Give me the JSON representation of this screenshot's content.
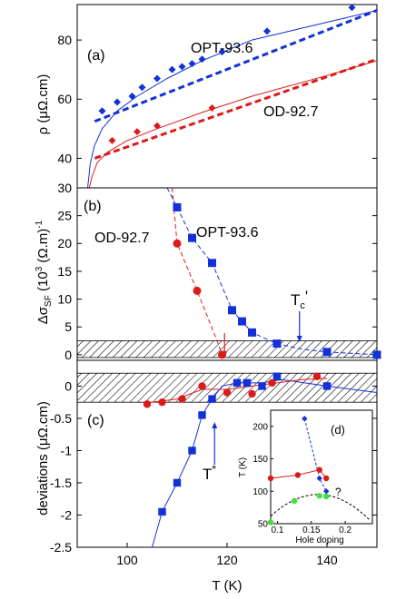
{
  "colors": {
    "blue": "#1430d8",
    "red": "#dd1a1a",
    "green": "#40e040",
    "axis": "#000000",
    "gray": "#777777"
  },
  "chart_data": [
    {
      "id": "a",
      "type": "line",
      "panel_label": "(a)",
      "ylabel": "ρ (μΩ.cm)",
      "xlim": [
        90,
        150
      ],
      "ylim": [
        30,
        92
      ],
      "yticks": [
        30,
        40,
        60,
        80
      ],
      "series": [
        {
          "name": "OPT-93.6",
          "color": "blue",
          "marker": "diamond",
          "points": [
            [
              95,
              56
            ],
            [
              98,
              59
            ],
            [
              101,
              61
            ],
            [
              103,
              64
            ],
            [
              106,
              67
            ],
            [
              109,
              70
            ],
            [
              111,
              71
            ],
            [
              113,
              72
            ],
            [
              115,
              73.5
            ],
            [
              119,
              76
            ],
            [
              128,
              83
            ],
            [
              145,
              91
            ]
          ]
        },
        {
          "name": "OD-92.7",
          "color": "red",
          "marker": "diamond",
          "points": [
            [
              97,
              46
            ],
            [
              102,
              49
            ],
            [
              106,
              51
            ],
            [
              117,
              57
            ]
          ]
        }
      ],
      "fits": [
        {
          "series": "OPT-93.6",
          "style": "dashed",
          "points": [
            [
              93.5,
              52.5
            ],
            [
              150,
              90
            ]
          ]
        },
        {
          "series": "OD-92.7",
          "style": "dashed",
          "points": [
            [
              93.5,
              40
            ],
            [
              150,
              73.5
            ]
          ]
        },
        {
          "series": "OPT-93.6",
          "style": "solid",
          "points": [
            [
              92.1,
              30
            ],
            [
              92.6,
              38
            ],
            [
              93.4,
              44
            ],
            [
              95,
              50
            ],
            [
              98,
              56
            ],
            [
              102,
              61
            ],
            [
              108,
              67
            ],
            [
              115,
              73
            ],
            [
              125,
              80
            ],
            [
              140,
              86
            ],
            [
              150,
              90
            ]
          ]
        },
        {
          "series": "OD-92.7",
          "style": "solid",
          "points": [
            [
              92.4,
              30
            ],
            [
              93,
              34
            ],
            [
              94,
              38.5
            ],
            [
              96,
              42
            ],
            [
              100,
              46
            ],
            [
              106,
              50
            ],
            [
              115,
              55.5
            ],
            [
              125,
              61
            ],
            [
              140,
              68
            ],
            [
              150,
              73
            ]
          ]
        }
      ]
    },
    {
      "id": "b",
      "type": "scatter",
      "panel_label": "(b)",
      "ylabel_main": "Δσ",
      "ylabel_sub": "SF",
      "ylabel_rest": " (10",
      "ylabel_exp": "3",
      "ylabel_tail": " (Ω.m)",
      "ylabel_exp2": "-1",
      "xlim": [
        90,
        150
      ],
      "ylim": [
        -1,
        30
      ],
      "yticks": [
        0,
        5,
        10,
        15,
        20,
        25
      ],
      "band": [
        -0.5,
        2.5
      ],
      "series": [
        {
          "name": "OPT-93.6",
          "color": "blue",
          "marker": "square",
          "points": [
            [
              110,
              26.5
            ],
            [
              113,
              21
            ],
            [
              117,
              16.5
            ],
            [
              121,
              8
            ],
            [
              123,
              6
            ],
            [
              125,
              4
            ],
            [
              130,
              2
            ],
            [
              140,
              0.5
            ],
            [
              150,
              0
            ]
          ]
        },
        {
          "name": "OD-92.7",
          "color": "red",
          "marker": "circle",
          "points": [
            [
              110,
              20
            ],
            [
              114,
              11.5
            ],
            [
              119,
              0
            ]
          ]
        }
      ],
      "fits": [
        {
          "series": "OPT-93.6",
          "style": "dashed",
          "points": [
            [
              108,
              30
            ],
            [
              110,
              26.5
            ],
            [
              113,
              21
            ],
            [
              117,
              16.5
            ],
            [
              121,
              8
            ],
            [
              125,
              4
            ],
            [
              130,
              2
            ],
            [
              135,
              1
            ],
            [
              140,
              0.5
            ],
            [
              150,
              0
            ]
          ]
        },
        {
          "series": "OD-92.7",
          "style": "dashed",
          "points": [
            [
              109,
              30
            ],
            [
              110,
              20
            ],
            [
              114,
              11.5
            ],
            [
              116,
              7
            ],
            [
              118,
              2.5
            ],
            [
              119,
              0
            ]
          ]
        }
      ],
      "annotations": {
        "tc_label": "T",
        "tc_sub": "c",
        "tc_prime": "'"
      }
    },
    {
      "id": "c",
      "type": "scatter",
      "panel_label": "(c)",
      "ylabel": "deviations (μΩ.cm)",
      "xlabel": "T (K)",
      "xlim": [
        90,
        150
      ],
      "xticks": [
        100,
        120,
        140
      ],
      "ylim": [
        -2.5,
        0.4
      ],
      "yticks": [
        0,
        -0.5,
        -1,
        -1.5,
        -2,
        -2.5
      ],
      "band": [
        -0.25,
        0.2
      ],
      "series": [
        {
          "name": "OPT-93.6",
          "color": "blue",
          "marker": "square",
          "points": [
            [
              107,
              -1.95
            ],
            [
              110,
              -1.5
            ],
            [
              113,
              -1.0
            ],
            [
              115,
              -0.45
            ],
            [
              117,
              -0.2
            ],
            [
              122,
              0.05
            ],
            [
              124,
              0.05
            ],
            [
              127,
              0.0
            ],
            [
              130,
              0.15
            ],
            [
              140,
              0.0
            ]
          ]
        },
        {
          "name": "OD-92.7",
          "color": "red",
          "marker": "circle",
          "points": [
            [
              104,
              -0.28
            ],
            [
              107,
              -0.25
            ],
            [
              111,
              -0.2
            ],
            [
              115,
              0.0
            ],
            [
              120,
              -0.1
            ],
            [
              125,
              -0.12
            ],
            [
              129,
              0.05
            ],
            [
              138,
              0.15
            ]
          ]
        }
      ],
      "fits": [
        {
          "series": "OPT-93.6",
          "style": "solid",
          "points": [
            [
              105,
              -2.5
            ],
            [
              107,
              -1.95
            ],
            [
              110,
              -1.5
            ],
            [
              113,
              -1.0
            ],
            [
              115,
              -0.45
            ],
            [
              117,
              -0.2
            ],
            [
              119,
              0.0
            ],
            [
              122,
              0.05
            ],
            [
              127,
              0.05
            ],
            [
              131,
              0.1
            ],
            [
              140,
              0.0
            ],
            [
              150,
              -0.1
            ]
          ]
        },
        {
          "series": "OD-92.7",
          "style": "solid",
          "points": [
            [
              104,
              -0.26
            ],
            [
              110,
              -0.2
            ],
            [
              115,
              -0.05
            ],
            [
              120,
              -0.05
            ],
            [
              125,
              0.0
            ],
            [
              130,
              0.05
            ],
            [
              135,
              0.1
            ],
            [
              140,
              0.12
            ]
          ]
        }
      ],
      "annotations": {
        "tstar_label": "T",
        "tstar_sup": "*"
      }
    },
    {
      "id": "d",
      "type": "scatter",
      "panel_label": "(d)",
      "xlabel": "Hole doping",
      "ylabel": "T (K)",
      "xlim": [
        0.09,
        0.24
      ],
      "xticks": [
        0.1,
        0.15,
        0.2
      ],
      "xtick_labels": [
        "0.1",
        "0.15",
        "0.2"
      ],
      "ylim": [
        50,
        225
      ],
      "yticks": [
        50,
        100,
        150,
        200
      ],
      "series": [
        {
          "name": "T*",
          "color": "blue",
          "marker": "diamond",
          "points": [
            [
              0.14,
              212
            ],
            [
              0.162,
              120
            ],
            [
              0.172,
              100
            ]
          ]
        },
        {
          "name": "T'",
          "color": "red",
          "marker": "circle",
          "points": [
            [
              0.09,
              120
            ],
            [
              0.13,
              125
            ],
            [
              0.162,
              133
            ],
            [
              0.172,
              120
            ]
          ]
        },
        {
          "name": "Tc",
          "color": "green",
          "marker": "circle",
          "points": [
            [
              0.09,
              52
            ],
            [
              0.125,
              85
            ],
            [
              0.162,
              93
            ],
            [
              0.172,
              92
            ]
          ]
        }
      ],
      "annotation": "?"
    }
  ]
}
